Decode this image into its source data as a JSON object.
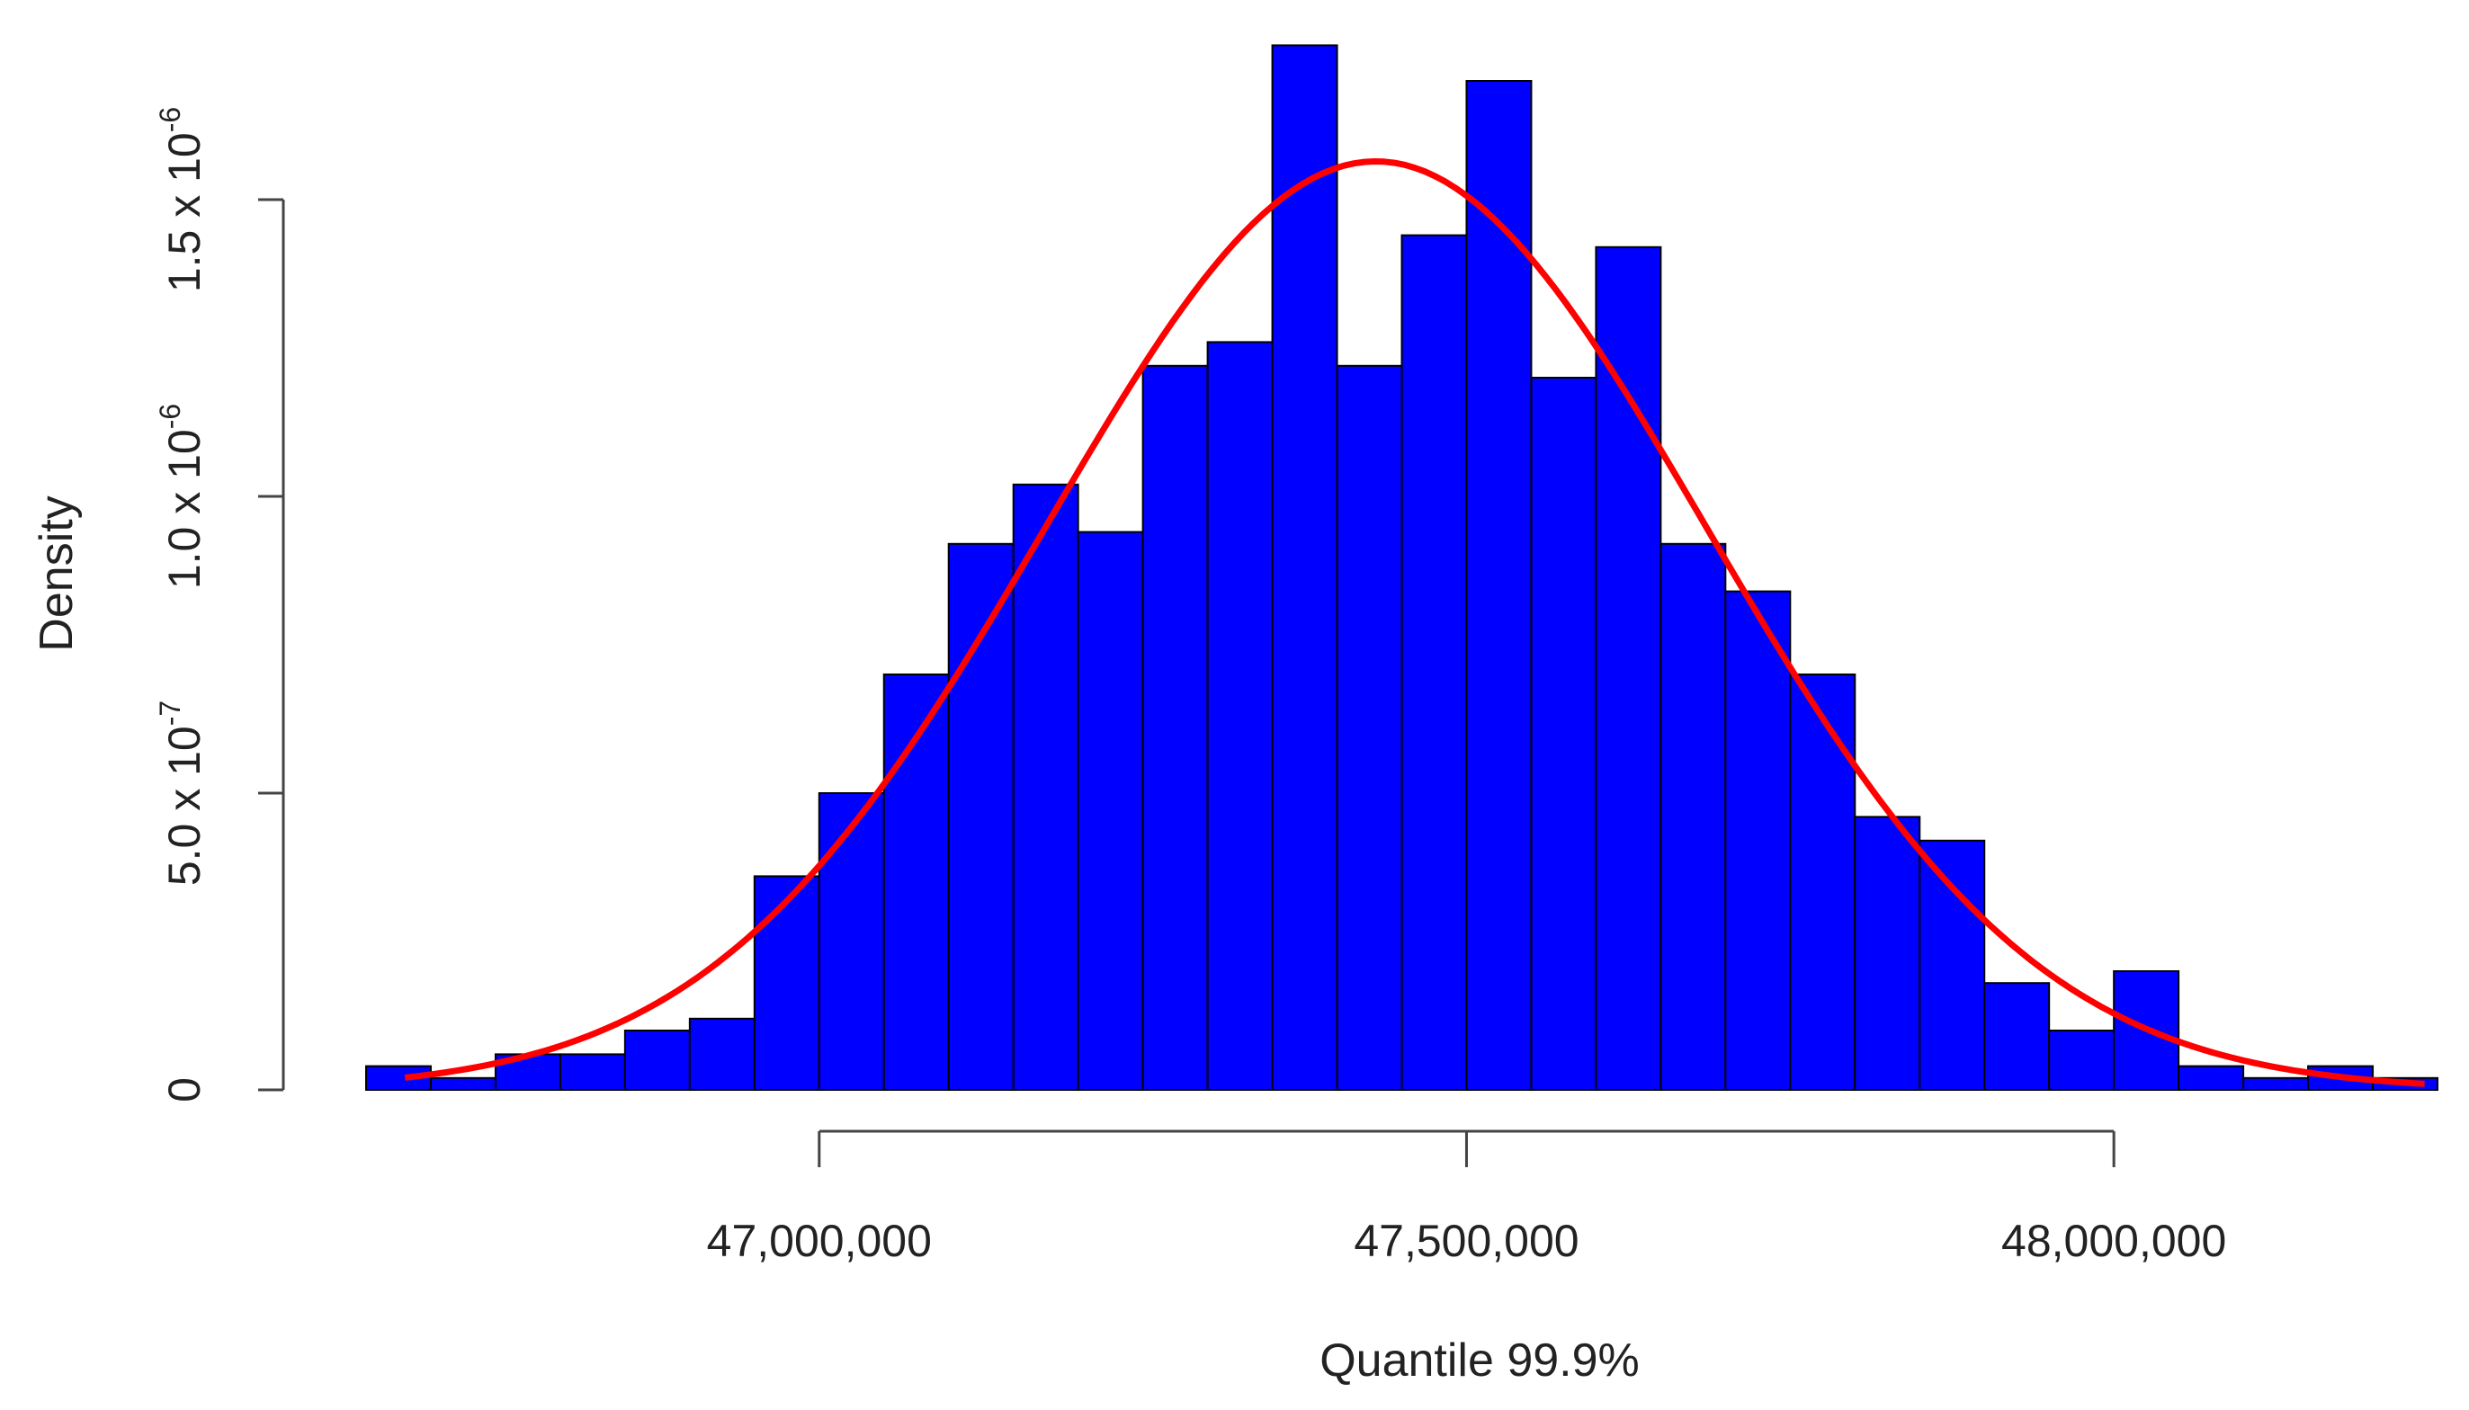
{
  "chart_data": {
    "type": "bar",
    "title": "",
    "xlabel": "Quantile 99.9%",
    "ylabel": "Density",
    "xlim": [
      46650000,
      48250000
    ],
    "ylim": [
      0,
      1.75e-06
    ],
    "bin_width": 50000,
    "bins_x_start": [
      46650000,
      46700000,
      46750000,
      46800000,
      46850000,
      46900000,
      46950000,
      47000000,
      47050000,
      47100000,
      47150000,
      47200000,
      47250000,
      47300000,
      47350000,
      47400000,
      47450000,
      47500000,
      47550000,
      47600000,
      47650000,
      47700000,
      47750000,
      47800000,
      47850000,
      47900000,
      47950000,
      48000000,
      48050000,
      48100000,
      48150000,
      48200000
    ],
    "values": [
      4e-08,
      2e-08,
      6e-08,
      6e-08,
      1e-07,
      1.2e-07,
      3.6e-07,
      5e-07,
      7e-07,
      9.2e-07,
      1.02e-06,
      9.4e-07,
      1.22e-06,
      1.26e-06,
      1.76e-06,
      1.22e-06,
      1.44e-06,
      1.7e-06,
      1.2e-06,
      1.42e-06,
      9.2e-07,
      8.4e-07,
      7e-07,
      4.6e-07,
      4.2e-07,
      1.8e-07,
      1e-07,
      2e-07,
      4e-08,
      2e-08,
      4e-08,
      2e-08
    ],
    "x_ticks": [
      47000000,
      47500000,
      48000000
    ],
    "x_tick_labels": [
      "47,000,000",
      "47,500,000",
      "48,000,000"
    ],
    "y_ticks": [
      0,
      5e-07,
      1e-06,
      1.5e-06
    ],
    "y_tick_labels": [
      {
        "mantissa": "0",
        "exponent": ""
      },
      {
        "mantissa": "5.0 x 10",
        "exponent": "-7"
      },
      {
        "mantissa": "1.0 x 10",
        "exponent": "-6"
      },
      {
        "mantissa": "1.5 x 10",
        "exponent": "-6"
      }
    ],
    "density_curve": {
      "type": "normal",
      "mean": 47430000,
      "sd": 255000,
      "x_range": [
        46680000,
        48240000
      ]
    },
    "colors": {
      "bar_fill": "#0000ff",
      "bar_stroke": "#000000",
      "curve": "#ff0000",
      "axis": "#444444"
    },
    "grid": false,
    "legend": "none"
  }
}
